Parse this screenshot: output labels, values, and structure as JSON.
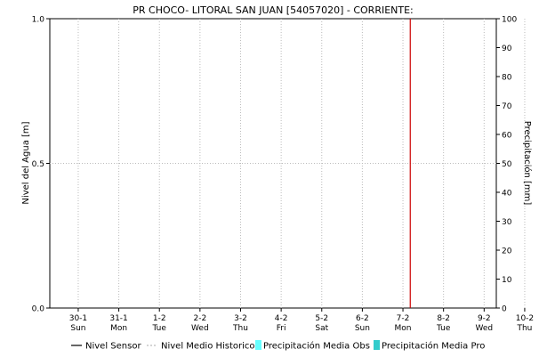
{
  "chart_data": {
    "type": "line",
    "title": "PR CHOCO- LITORAL SAN JUAN [54057020] - CORRIENTE:",
    "ylabel": "Nivel del Agua [m]",
    "y2label": "Precipitación [mm]",
    "ylim": [
      0,
      1
    ],
    "y2lim": [
      0,
      100
    ],
    "y_ticks": [
      "0.0",
      "0.5",
      "1.0"
    ],
    "y2_ticks": [
      "0",
      "10",
      "20",
      "30",
      "40",
      "50",
      "60",
      "70",
      "80",
      "90",
      "100"
    ],
    "x_ticks": [
      {
        "date": "30-1",
        "day": "Sun"
      },
      {
        "date": "31-1",
        "day": "Mon"
      },
      {
        "date": "1-2",
        "day": "Tue"
      },
      {
        "date": "2-2",
        "day": "Wed"
      },
      {
        "date": "3-2",
        "day": "Thu"
      },
      {
        "date": "4-2",
        "day": "Fri"
      },
      {
        "date": "5-2",
        "day": "Sat"
      },
      {
        "date": "6-2",
        "day": "Sun"
      },
      {
        "date": "7-2",
        "day": "Mon"
      },
      {
        "date": "8-2",
        "day": "Tue"
      },
      {
        "date": "9-2",
        "day": "Wed"
      },
      {
        "date": "10-2",
        "day": "Thu"
      }
    ],
    "x_range_days": [
      -0.7,
      10.3
    ],
    "current_time_marker_day": 8.18,
    "grid": true,
    "legend_position": "bottom",
    "series": [
      {
        "name": "Nivel Sensor",
        "style": "line",
        "color": "#000000",
        "values": []
      },
      {
        "name": "Nivel Medio Historico",
        "style": "dotted",
        "color": "#bbbbbb",
        "values": []
      },
      {
        "name": "Precipitación Media Obs",
        "style": "box",
        "color": "#66ffff",
        "values": []
      },
      {
        "name": "Precipitación Media Pro",
        "style": "box",
        "color": "#33cccc",
        "values": []
      }
    ],
    "marker_color": "#cc0000"
  }
}
